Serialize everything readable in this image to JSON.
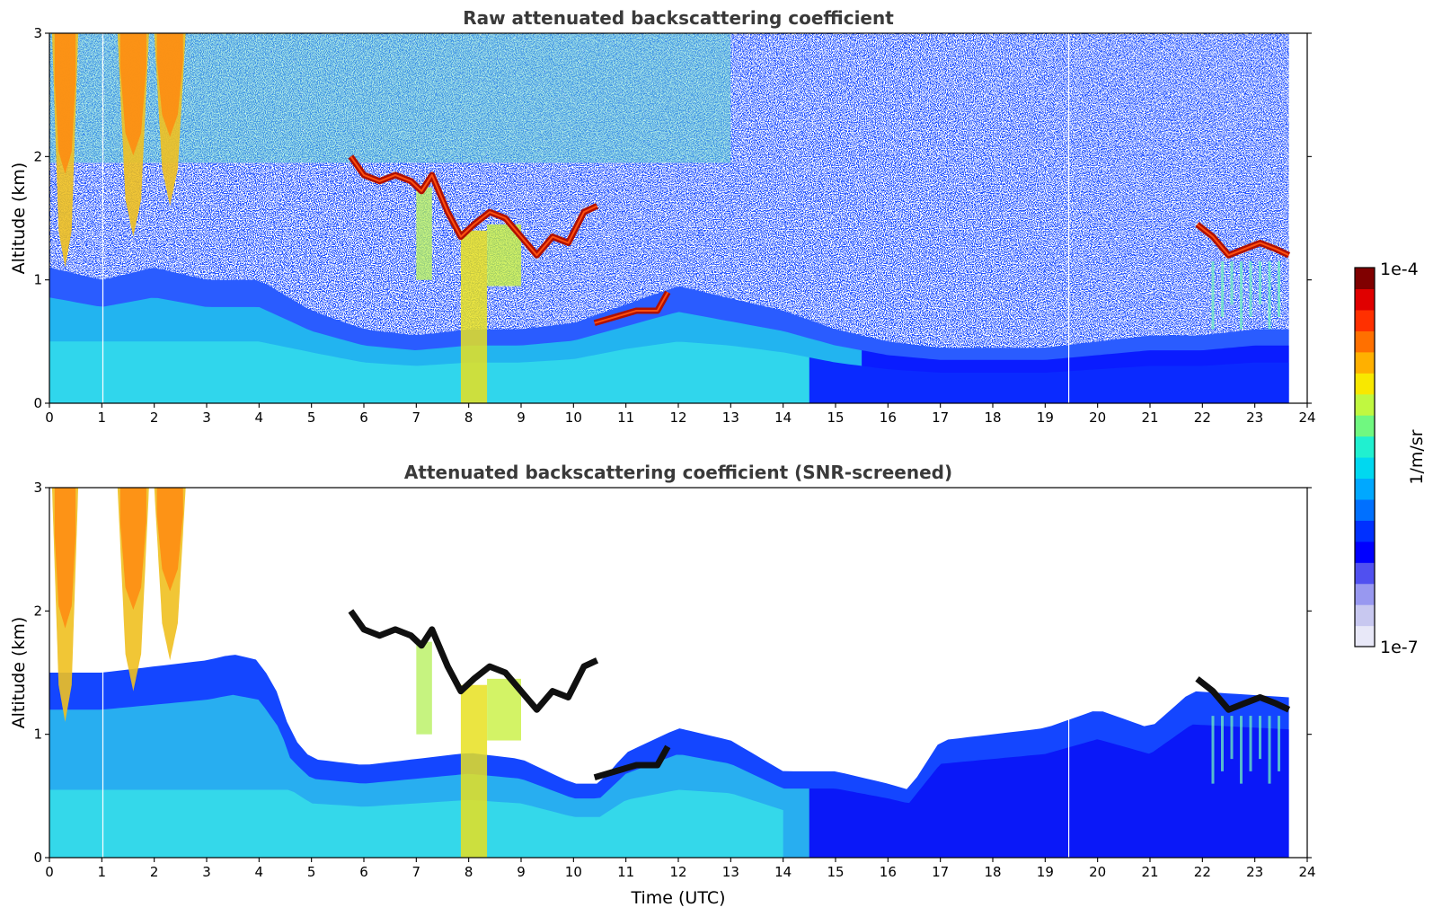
{
  "chart_data": [
    {
      "type": "heatmap",
      "title": "Raw attenuated backscattering coefficient",
      "xlabel": "",
      "ylabel": "Altitude (km)",
      "xlim": [
        0,
        24
      ],
      "ylim": [
        0,
        3
      ],
      "x_ticks": [
        0,
        1,
        2,
        3,
        4,
        5,
        6,
        7,
        8,
        9,
        10,
        11,
        12,
        13,
        14,
        15,
        16,
        17,
        18,
        19,
        20,
        21,
        22,
        23,
        24
      ],
      "y_ticks": [
        0,
        1,
        2,
        3
      ],
      "data_end_x": 23.65,
      "snr_screened": false,
      "aerosol_top_km": [
        [
          0,
          1.1
        ],
        [
          1,
          1.0
        ],
        [
          2,
          1.1
        ],
        [
          3,
          1.0
        ],
        [
          4,
          1.0
        ],
        [
          5,
          0.75
        ],
        [
          6,
          0.6
        ],
        [
          7,
          0.55
        ],
        [
          8,
          0.6
        ],
        [
          9,
          0.6
        ],
        [
          10,
          0.65
        ],
        [
          11,
          0.8
        ],
        [
          12,
          0.95
        ],
        [
          13,
          0.85
        ],
        [
          14,
          0.75
        ],
        [
          15,
          0.6
        ],
        [
          16,
          0.5
        ],
        [
          17,
          0.45
        ],
        [
          18,
          0.45
        ],
        [
          19,
          0.45
        ],
        [
          20,
          0.5
        ],
        [
          21,
          0.55
        ],
        [
          22,
          0.55
        ],
        [
          23,
          0.6
        ],
        [
          23.65,
          0.6
        ]
      ],
      "cloud_layer_km": [
        [
          5.75,
          2.0
        ],
        [
          6.0,
          1.85
        ],
        [
          6.3,
          1.8
        ],
        [
          6.6,
          1.85
        ],
        [
          6.9,
          1.8
        ],
        [
          7.1,
          1.72
        ],
        [
          7.3,
          1.85
        ],
        [
          7.6,
          1.55
        ],
        [
          7.85,
          1.35
        ],
        [
          8.1,
          1.45
        ],
        [
          8.4,
          1.55
        ],
        [
          8.7,
          1.5
        ],
        [
          9.0,
          1.35
        ],
        [
          9.3,
          1.2
        ],
        [
          9.6,
          1.35
        ],
        [
          9.9,
          1.3
        ],
        [
          10.2,
          1.55
        ],
        [
          10.45,
          1.6
        ]
      ],
      "low_cloud_km": [
        [
          10.4,
          0.65
        ],
        [
          10.8,
          0.7
        ],
        [
          11.2,
          0.75
        ],
        [
          11.6,
          0.75
        ],
        [
          11.8,
          0.9
        ]
      ],
      "late_cloud_km": [
        [
          21.9,
          1.45
        ],
        [
          22.2,
          1.35
        ],
        [
          22.5,
          1.2
        ],
        [
          22.8,
          1.25
        ],
        [
          23.1,
          1.3
        ],
        [
          23.4,
          1.25
        ],
        [
          23.65,
          1.2
        ]
      ]
    },
    {
      "type": "heatmap",
      "title": "Attenuated backscattering coefficient (SNR-screened)",
      "xlabel": "Time (UTC)",
      "ylabel": "Altitude (km)",
      "xlim": [
        0,
        24
      ],
      "ylim": [
        0,
        3
      ],
      "x_ticks": [
        0,
        1,
        2,
        3,
        4,
        5,
        6,
        7,
        8,
        9,
        10,
        11,
        12,
        13,
        14,
        15,
        16,
        17,
        18,
        19,
        20,
        21,
        22,
        23,
        24
      ],
      "y_ticks": [
        0,
        1,
        2,
        3
      ],
      "data_end_x": 23.65,
      "snr_screened": true,
      "screen_top_km": [
        [
          0,
          1.5
        ],
        [
          1,
          1.5
        ],
        [
          2,
          1.55
        ],
        [
          3,
          1.6
        ],
        [
          3.5,
          1.65
        ],
        [
          4,
          1.6
        ],
        [
          4.4,
          1.3
        ],
        [
          4.6,
          1.0
        ],
        [
          5,
          0.8
        ],
        [
          6,
          0.75
        ],
        [
          7,
          0.8
        ],
        [
          8,
          0.85
        ],
        [
          9,
          0.8
        ],
        [
          10,
          0.6
        ],
        [
          10.5,
          0.6
        ],
        [
          11,
          0.85
        ],
        [
          12,
          1.05
        ],
        [
          13,
          0.95
        ],
        [
          14,
          0.7
        ],
        [
          15,
          0.7
        ],
        [
          16,
          0.6
        ],
        [
          16.4,
          0.55
        ],
        [
          17,
          0.95
        ],
        [
          18,
          1.0
        ],
        [
          19,
          1.05
        ],
        [
          20,
          1.2
        ],
        [
          21,
          1.05
        ],
        [
          21.8,
          1.35
        ],
        [
          23.65,
          1.3
        ]
      ]
    }
  ],
  "colorbar": {
    "label": "1/m/sr",
    "max_label": "1e-4",
    "min_label": "1e-7",
    "colors": [
      "#e8e8f8",
      "#c8c8f0",
      "#9898f0",
      "#5050f0",
      "#0000ff",
      "#0030ff",
      "#0070ff",
      "#00a8ff",
      "#00d8f0",
      "#20f0d0",
      "#70f880",
      "#c0f840",
      "#f8e800",
      "#ffb000",
      "#ff7000",
      "#ff3000",
      "#e00000",
      "#800000"
    ]
  }
}
